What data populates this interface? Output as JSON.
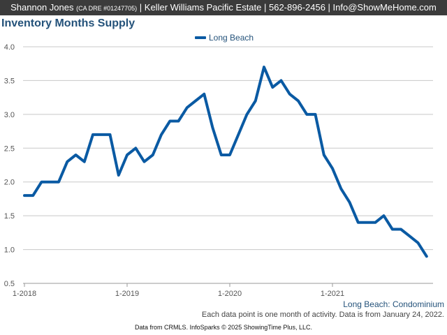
{
  "header": {
    "agent_name": "Shannon Jones",
    "license": "(CA DRE #01247705)",
    "company": "| Keller Williams Pacific Estate | 562-896-2456 | Info@ShowMeHome.com"
  },
  "chart_data": {
    "type": "line",
    "title": "Inventory Months Supply",
    "xlabel": "",
    "ylabel": "",
    "ylim": [
      0.5,
      4.0
    ],
    "yticks": [
      "4.0",
      "3.5",
      "3.0",
      "2.5",
      "2.0",
      "1.5",
      "1.0",
      "0.5"
    ],
    "xticks": [
      "1-2018",
      "1-2019",
      "1-2020",
      "1-2021"
    ],
    "grid": true,
    "legend_position": "top-center",
    "x": [
      "2018-01",
      "2018-02",
      "2018-03",
      "2018-04",
      "2018-05",
      "2018-06",
      "2018-07",
      "2018-08",
      "2018-09",
      "2018-10",
      "2018-11",
      "2018-12",
      "2019-01",
      "2019-02",
      "2019-03",
      "2019-04",
      "2019-05",
      "2019-06",
      "2019-07",
      "2019-08",
      "2019-09",
      "2019-10",
      "2019-11",
      "2019-12",
      "2020-01",
      "2020-02",
      "2020-03",
      "2020-04",
      "2020-05",
      "2020-06",
      "2020-07",
      "2020-08",
      "2020-09",
      "2020-10",
      "2020-11",
      "2020-12",
      "2021-01",
      "2021-02",
      "2021-03",
      "2021-04",
      "2021-05",
      "2021-06",
      "2021-07",
      "2021-08",
      "2021-09",
      "2021-10",
      "2021-11",
      "2021-12"
    ],
    "series": [
      {
        "name": "Long Beach",
        "color": "#0a5aa3",
        "values": [
          1.8,
          1.8,
          2.0,
          2.0,
          2.0,
          2.3,
          2.4,
          2.3,
          2.7,
          2.7,
          2.7,
          2.1,
          2.4,
          2.5,
          2.3,
          2.4,
          2.7,
          2.9,
          2.9,
          3.1,
          3.2,
          3.3,
          2.8,
          2.4,
          2.4,
          2.7,
          3.0,
          3.2,
          3.7,
          3.4,
          3.5,
          3.3,
          3.2,
          3.0,
          3.0,
          2.4,
          2.2,
          1.9,
          1.7,
          1.4,
          1.4,
          1.4,
          1.5,
          1.3,
          1.3,
          1.2,
          1.1,
          0.9
        ]
      }
    ]
  },
  "footer": {
    "series_caption": "Long Beach: Condominium",
    "footnote": "Each data point is one month of activity. Data is from January 24, 2022.",
    "credit": "Data from CRMLS. InfoSparks © 2025 ShowingTime Plus, LLC."
  },
  "colors": {
    "header_bg": "#3b3b3b",
    "title": "#24527a",
    "line": "#0a5aa3",
    "grid": "#c8c8c8"
  }
}
